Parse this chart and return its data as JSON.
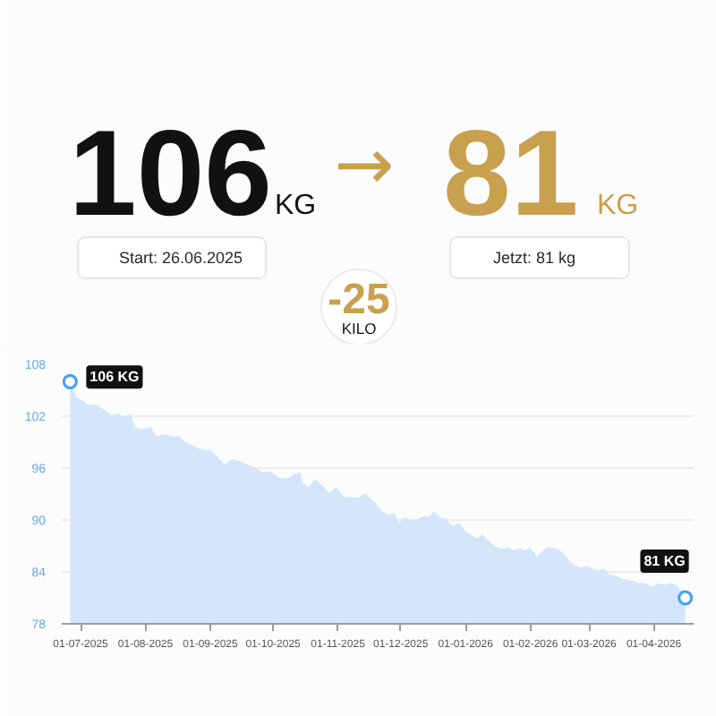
{
  "chart_data": {
    "type": "area",
    "annotations": [
      "106",
      "KG",
      "→",
      "81",
      "KG",
      "Start: 26.06.2025",
      "Jetzt: 81 kg",
      "-25",
      "KILO",
      {
        "text": "106 KG",
        "x": "2025-06-26",
        "y": 106
      },
      {
        "text": "81 KG",
        "x": "2026-04-16",
        "y": 81
      }
    ],
    "xlim": [
      "2025-06-22",
      "2026-04-20"
    ],
    "xticks": [
      {
        "value": "2025-07-01",
        "label": "01-07-2025"
      },
      {
        "value": "2025-08-01",
        "label": "01-08-2025"
      },
      {
        "value": "2025-09-01",
        "label": "01-09-2025"
      },
      {
        "value": "2025-10-01",
        "label": "01-10-2025"
      },
      {
        "value": "2025-11-01",
        "label": "01-11-2025"
      },
      {
        "value": "2025-12-01",
        "label": "01-12-2025"
      },
      {
        "value": "2026-01-01",
        "label": "01-01-2026"
      },
      {
        "value": "2026-02-01",
        "label": "01-02-2026"
      },
      {
        "value": "2026-03-01",
        "label": "01-03-2026"
      },
      {
        "value": "2026-04-01",
        "label": "01-04-2026"
      }
    ],
    "ylim": [
      78,
      108
    ],
    "yticks": [
      108,
      102,
      96,
      90,
      84,
      78
    ],
    "grid": "y",
    "series": [
      {
        "color": "#d3e6fb",
        "x": [
          "2025-06-26",
          "2025-06-29",
          "2025-07-02",
          "2025-07-05",
          "2025-07-08",
          "2025-07-10",
          "2025-07-13",
          "2025-07-16",
          "2025-07-19",
          "2025-07-22",
          "2025-07-25",
          "2025-07-27",
          "2025-07-30",
          "2025-08-04",
          "2025-08-06",
          "2025-08-11",
          "2025-08-14",
          "2025-08-17",
          "2025-08-20",
          "2025-08-26",
          "2025-08-29",
          "2025-09-01",
          "2025-09-04",
          "2025-09-08",
          "2025-09-11",
          "2025-09-15",
          "2025-09-18",
          "2025-09-23",
          "2025-09-26",
          "2025-09-30",
          "2025-10-04",
          "2025-10-08",
          "2025-10-11",
          "2025-10-14",
          "2025-10-15",
          "2025-10-18",
          "2025-10-21",
          "2025-10-24",
          "2025-10-28",
          "2025-10-31",
          "2025-11-04",
          "2025-11-08",
          "2025-11-11",
          "2025-11-14",
          "2025-11-16",
          "2025-11-19",
          "2025-11-22",
          "2025-11-25",
          "2025-11-28",
          "2025-11-30",
          "2025-12-03",
          "2025-12-06",
          "2025-12-09",
          "2025-12-12",
          "2025-12-14",
          "2025-12-17",
          "2025-12-20",
          "2025-12-23",
          "2025-12-26",
          "2025-12-29",
          "2026-01-01",
          "2026-01-04",
          "2026-01-07",
          "2026-01-09",
          "2026-01-12",
          "2026-01-15",
          "2026-01-18",
          "2026-01-21",
          "2026-01-24",
          "2026-01-27",
          "2026-01-29",
          "2026-02-01",
          "2026-02-04",
          "2026-02-07",
          "2026-02-09",
          "2026-02-12",
          "2026-02-15",
          "2026-02-17",
          "2026-02-20",
          "2026-02-23",
          "2026-02-25",
          "2026-02-28",
          "2026-03-02",
          "2026-03-05",
          "2026-03-08",
          "2026-03-11",
          "2026-03-13",
          "2026-03-16",
          "2026-03-19",
          "2026-03-22",
          "2026-03-25",
          "2026-03-28",
          "2026-03-31",
          "2026-04-03",
          "2026-04-06",
          "2026-04-09",
          "2026-04-12",
          "2026-04-16"
        ],
        "values": [
          106,
          104.2,
          103.8,
          103.3,
          103.4,
          103.1,
          102.6,
          102.1,
          102.3,
          101.9,
          102.3,
          100.7,
          100.5,
          100.7,
          99.7,
          99.9,
          99.6,
          99.7,
          99.0,
          98.3,
          98.1,
          98.1,
          97.4,
          96.4,
          97.0,
          96.8,
          96.5,
          96.0,
          95.5,
          95.6,
          94.9,
          94.8,
          95.3,
          95.5,
          94.3,
          93.8,
          94.7,
          94.1,
          93.1,
          93.8,
          92.7,
          92.6,
          92.6,
          93.1,
          92.6,
          92.0,
          91.0,
          90.6,
          90.8,
          89.6,
          90.3,
          90.0,
          90.1,
          90.5,
          90.3,
          91.0,
          90.3,
          90.0,
          89.3,
          89.6,
          88.7,
          88.2,
          87.9,
          88.4,
          87.5,
          87.0,
          86.6,
          86.8,
          86.5,
          86.8,
          86.5,
          86.8,
          85.8,
          86.5,
          86.8,
          86.8,
          86.5,
          86.1,
          85.1,
          84.7,
          84.5,
          84.7,
          84.4,
          84.2,
          84.4,
          83.7,
          83.6,
          83.3,
          83.1,
          83.0,
          82.7,
          82.7,
          82.3,
          82.7,
          82.5,
          82.7,
          82.5,
          81
        ]
      },
      {
        "type": "scatter",
        "marker": "circle",
        "color": "#4b9ff2",
        "x": [
          "2025-06-26",
          "2026-04-16"
        ],
        "values": [
          106,
          81
        ]
      }
    ]
  }
}
